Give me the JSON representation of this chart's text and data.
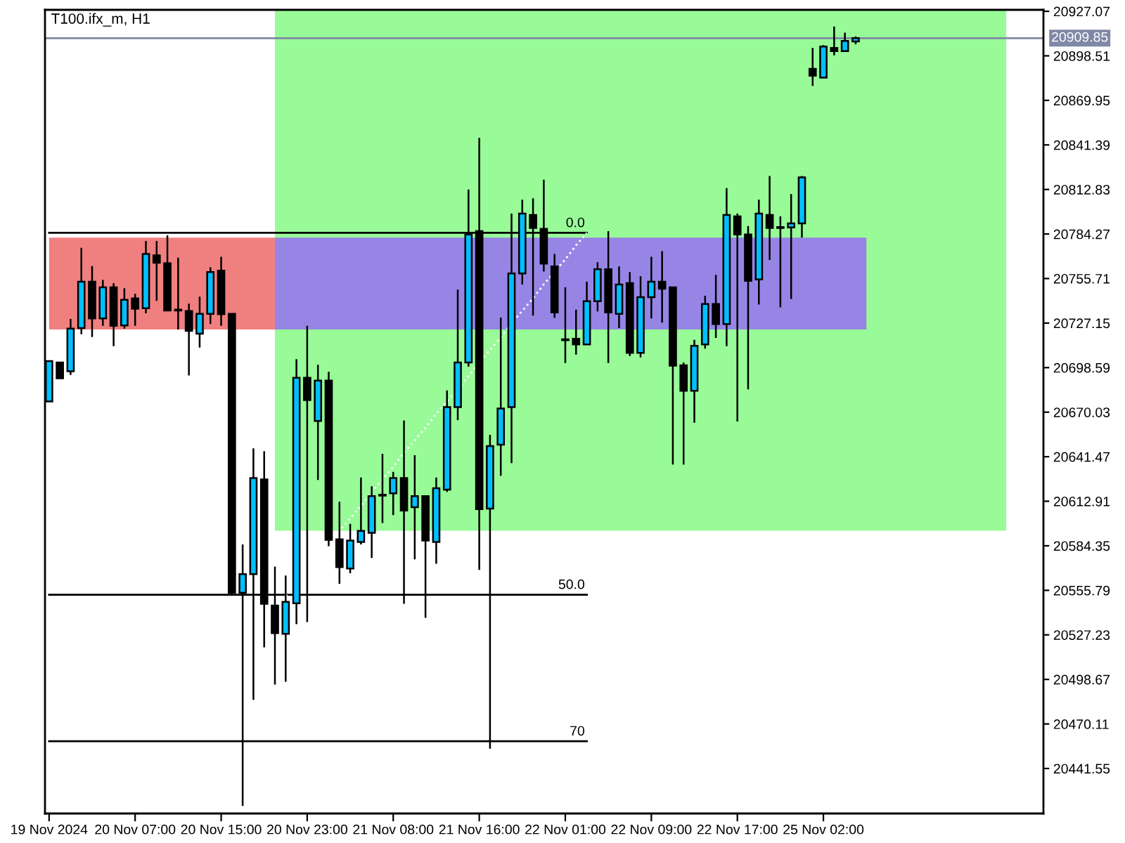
{
  "chart_data": {
    "type": "candlestick",
    "title": "T100.ifx_m, H1",
    "categories": [
      "19 Nov 2024",
      null,
      null,
      null,
      null,
      null,
      null,
      null,
      "20 Nov 07:00",
      null,
      null,
      null,
      null,
      null,
      null,
      null,
      "20 Nov 15:00",
      null,
      null,
      null,
      null,
      null,
      null,
      null,
      "20 Nov 23:00",
      null,
      null,
      null,
      null,
      null,
      null,
      null,
      "21 Nov 08:00",
      null,
      null,
      null,
      null,
      null,
      null,
      null,
      "21 Nov 16:00",
      null,
      null,
      null,
      null,
      null,
      null,
      null,
      "22 Nov 01:00",
      null,
      null,
      null,
      null,
      null,
      null,
      null,
      "22 Nov 09:00",
      null,
      null,
      null,
      null,
      null,
      null,
      null,
      "22 Nov 17:00",
      null,
      null,
      null,
      null,
      null,
      null,
      null,
      "25 Nov 02:00",
      null,
      null,
      null,
      null,
      null,
      null,
      null,
      null,
      null,
      null,
      null,
      null,
      null,
      null,
      null,
      null,
      null,
      null,
      null,
      null
    ],
    "ylim": [
      20412.7,
      20928.0
    ],
    "yticks": [
      20927.07,
      20898.51,
      20869.95,
      20841.39,
      20812.83,
      20784.27,
      20755.71,
      20727.15,
      20698.59,
      20670.03,
      20641.47,
      20612.91,
      20584.35,
      20555.79,
      20527.23,
      20498.67,
      20470.11,
      20441.55
    ],
    "series": [
      {
        "type": "line",
        "color": "#98fb98",
        "values": [
          null,
          null,
          null,
          null,
          null,
          null,
          null,
          null,
          null,
          null,
          null,
          null,
          null,
          null,
          null,
          null,
          null,
          null,
          null,
          null,
          null,
          null,
          null,
          null,
          null,
          null,
          null,
          null,
          null,
          null,
          null,
          null,
          null,
          null,
          null,
          null,
          null,
          null,
          null,
          null,
          null,
          null,
          null,
          null,
          null,
          null,
          null,
          null,
          null,
          null,
          null,
          null,
          null,
          null,
          null,
          null,
          null,
          null,
          null,
          null,
          null,
          null,
          null,
          null,
          null,
          null,
          null,
          null,
          null,
          null,
          null,
          null,
          null,
          null,
          null,
          null,
          null,
          null,
          null,
          null,
          null,
          null,
          null,
          null,
          null,
          null,
          null,
          null,
          null,
          null,
          null,
          null,
          null
        ],
        "upper": [
          null,
          null,
          null,
          null,
          null,
          null,
          null,
          null,
          null,
          null,
          null,
          null,
          null,
          null,
          null,
          null,
          null,
          null,
          null,
          null,
          null,
          20928,
          null,
          null,
          null,
          null,
          null,
          null,
          null,
          null,
          null,
          null,
          null,
          null,
          null,
          null,
          null,
          null,
          null,
          null,
          null,
          null,
          null,
          null,
          null,
          null,
          null,
          null,
          null,
          null,
          null,
          null,
          null,
          null,
          null,
          null,
          null,
          null,
          null,
          null,
          null,
          null,
          null,
          null,
          null,
          null,
          null,
          null,
          null,
          null,
          null,
          null,
          null,
          null,
          null,
          null,
          null,
          null,
          null,
          null,
          null,
          null,
          null,
          null,
          null,
          null,
          null,
          null,
          null,
          20928,
          null,
          null,
          null
        ],
        "lower": [
          null,
          null,
          null,
          null,
          null,
          null,
          null,
          null,
          null,
          null,
          null,
          null,
          null,
          null,
          null,
          null,
          null,
          null,
          null,
          null,
          null,
          20594,
          null,
          null,
          null,
          null,
          null,
          null,
          null,
          null,
          null,
          null,
          null,
          null,
          null,
          null,
          null,
          null,
          null,
          null,
          null,
          null,
          null,
          null,
          null,
          null,
          null,
          null,
          null,
          null,
          null,
          null,
          null,
          null,
          null,
          null,
          null,
          null,
          null,
          null,
          null,
          null,
          null,
          null,
          null,
          null,
          null,
          null,
          null,
          null,
          null,
          null,
          null,
          null,
          null,
          null,
          null,
          null,
          null,
          null,
          null,
          null,
          null,
          null,
          null,
          null,
          null,
          null,
          null,
          20594,
          null,
          null,
          null
        ]
      },
      {
        "type": "line",
        "color": "#f08080",
        "values": [
          null,
          null,
          null,
          null,
          null,
          null,
          null,
          null,
          null,
          null,
          null,
          null,
          null,
          null,
          null,
          null,
          null,
          null,
          null,
          null,
          null,
          null,
          null,
          null,
          null,
          null,
          null,
          null,
          null,
          null,
          null,
          null,
          null,
          null,
          null,
          null,
          null,
          null,
          null,
          null,
          null,
          null,
          null,
          null,
          null,
          null,
          null,
          null,
          null,
          null,
          null,
          null,
          null,
          null,
          null,
          null,
          null,
          null,
          null,
          null,
          null,
          null,
          null,
          null,
          null,
          null,
          null,
          null,
          null,
          null,
          null,
          null,
          null,
          null,
          null,
          null,
          null,
          null,
          null,
          null,
          null,
          null,
          null,
          null,
          null,
          null,
          null,
          null,
          null,
          null,
          null,
          null,
          null
        ],
        "upper": [
          20782,
          null,
          null,
          null,
          null,
          null,
          null,
          null,
          null,
          null,
          null,
          null,
          null,
          null,
          null,
          null,
          null,
          null,
          null,
          null,
          null,
          20782,
          null,
          null,
          null,
          null,
          null,
          null,
          null,
          null,
          null,
          null,
          null,
          null,
          null,
          null,
          null,
          null,
          null,
          null,
          null,
          null,
          null,
          null,
          null,
          null,
          null,
          null,
          null,
          null,
          null,
          null,
          null,
          null,
          null,
          null,
          null,
          null,
          null,
          null,
          null,
          null,
          null,
          null,
          null,
          null,
          null,
          null,
          null,
          null,
          null,
          null,
          null,
          null,
          null,
          null,
          null,
          null,
          null,
          null,
          null,
          null,
          null,
          null,
          null,
          null,
          null,
          null,
          null,
          null,
          null,
          null,
          null
        ],
        "lower": [
          20723,
          null,
          null,
          null,
          null,
          null,
          null,
          null,
          null,
          null,
          null,
          null,
          null,
          null,
          null,
          null,
          null,
          null,
          null,
          null,
          null,
          20723,
          null,
          null,
          null,
          null,
          null,
          null,
          null,
          null,
          null,
          null,
          null,
          null,
          null,
          null,
          null,
          null,
          null,
          null,
          null,
          null,
          null,
          null,
          null,
          null,
          null,
          null,
          null,
          null,
          null,
          null,
          null,
          null,
          null,
          null,
          null,
          null,
          null,
          null,
          null,
          null,
          null,
          null,
          null,
          null,
          null,
          null,
          null,
          null,
          null,
          null,
          null,
          null,
          null,
          null,
          null,
          null,
          null,
          null,
          null,
          null,
          null,
          null,
          null,
          null,
          null,
          null,
          null,
          null,
          null,
          null,
          null
        ]
      },
      {
        "type": "line",
        "color": "#9785e6",
        "values": [
          null,
          null,
          null,
          null,
          null,
          null,
          null,
          null,
          null,
          null,
          null,
          null,
          null,
          null,
          null,
          null,
          null,
          null,
          null,
          null,
          null,
          null,
          null,
          null,
          null,
          null,
          null,
          null,
          null,
          null,
          null,
          null,
          null,
          null,
          null,
          null,
          null,
          null,
          null,
          null,
          null,
          null,
          null,
          null,
          null,
          null,
          null,
          null,
          null,
          null,
          null,
          null,
          null,
          null,
          null,
          null,
          null,
          null,
          null,
          null,
          null,
          null,
          null,
          null,
          null,
          null,
          null,
          null,
          null,
          null,
          null,
          null,
          null,
          null,
          null,
          null,
          null,
          null,
          null,
          null,
          null,
          null,
          null,
          null,
          null,
          null,
          null,
          null,
          null,
          null,
          null,
          null,
          null
        ],
        "upper": [
          null,
          null,
          null,
          null,
          null,
          null,
          null,
          null,
          null,
          null,
          null,
          null,
          null,
          null,
          null,
          null,
          null,
          null,
          null,
          null,
          null,
          20782,
          null,
          null,
          null,
          null,
          null,
          null,
          null,
          null,
          null,
          null,
          null,
          null,
          null,
          null,
          null,
          null,
          null,
          null,
          null,
          null,
          null,
          null,
          null,
          null,
          null,
          null,
          null,
          null,
          null,
          null,
          null,
          null,
          null,
          null,
          null,
          null,
          null,
          null,
          null,
          null,
          null,
          null,
          null,
          null,
          null,
          null,
          null,
          null,
          null,
          null,
          null,
          null,
          null,
          null,
          20782,
          null,
          null,
          null,
          null,
          null,
          null,
          null,
          null,
          null,
          null,
          null,
          null,
          null,
          null,
          null,
          null
        ],
        "lower": [
          null,
          null,
          null,
          null,
          null,
          null,
          null,
          null,
          null,
          null,
          null,
          null,
          null,
          null,
          null,
          null,
          null,
          null,
          null,
          null,
          null,
          20723,
          null,
          null,
          null,
          null,
          null,
          null,
          null,
          null,
          null,
          null,
          null,
          null,
          null,
          null,
          null,
          null,
          null,
          null,
          null,
          null,
          null,
          null,
          null,
          null,
          null,
          null,
          null,
          null,
          null,
          null,
          null,
          null,
          null,
          null,
          null,
          null,
          null,
          null,
          null,
          null,
          null,
          null,
          null,
          null,
          null,
          null,
          null,
          null,
          null,
          null,
          null,
          null,
          null,
          null,
          20723,
          null,
          null,
          null,
          null,
          null,
          null,
          null,
          null,
          null,
          null,
          null,
          null,
          null,
          null,
          null,
          null
        ]
      },
      {
        "type": "line",
        "name": "0.0",
        "color": "#000000",
        "line_style": "solid",
        "values": [
          20785,
          20785,
          20785,
          20785,
          20785,
          20785,
          20785,
          20785,
          20785,
          20785,
          20785,
          20785,
          20785,
          20785,
          20785,
          20785,
          20785,
          20785,
          20785,
          20785,
          20785,
          20785,
          20785,
          20785,
          20785,
          20785,
          20785,
          20785,
          20785,
          20785,
          20785,
          20785,
          20785,
          20785,
          20785,
          20785,
          20785,
          20785,
          20785,
          20785,
          20785,
          20785,
          20785,
          20785,
          20785,
          20785,
          20785,
          20785,
          20785,
          20785,
          20785,
          null,
          null,
          null,
          null,
          null,
          null,
          null,
          null,
          null,
          null,
          null,
          null,
          null,
          null,
          null,
          null,
          null,
          null,
          null,
          null,
          null,
          null,
          null,
          null,
          null,
          null,
          null,
          null,
          null,
          null,
          null,
          null,
          null,
          null,
          null,
          null,
          null,
          null,
          null,
          null,
          null,
          null
        ]
      },
      {
        "type": "line",
        "name": "50.0",
        "color": "#000000",
        "line_style": "solid",
        "values": [
          20553,
          20553,
          20553,
          20553,
          20553,
          20553,
          20553,
          20553,
          20553,
          20553,
          20553,
          20553,
          20553,
          20553,
          20553,
          20553,
          20553,
          20553,
          20553,
          20553,
          20553,
          20553,
          20553,
          20553,
          20553,
          20553,
          20553,
          20553,
          20553,
          20553,
          20553,
          20553,
          20553,
          20553,
          20553,
          20553,
          20553,
          20553,
          20553,
          20553,
          20553,
          20553,
          20553,
          20553,
          20553,
          20553,
          20553,
          20553,
          20553,
          20553,
          20553,
          null,
          null,
          null,
          null,
          null,
          null,
          null,
          null,
          null,
          null,
          null,
          null,
          null,
          null,
          null,
          null,
          null,
          null,
          null,
          null,
          null,
          null,
          null,
          null,
          null,
          null,
          null,
          null,
          null,
          null,
          null,
          null,
          null,
          null,
          null,
          null,
          null,
          null,
          null,
          null,
          null,
          null
        ]
      },
      {
        "type": "line",
        "name": "70",
        "color": "#000000",
        "line_style": "solid",
        "values": [
          20459,
          20459,
          20459,
          20459,
          20459,
          20459,
          20459,
          20459,
          20459,
          20459,
          20459,
          20459,
          20459,
          20459,
          20459,
          20459,
          20459,
          20459,
          20459,
          20459,
          20459,
          20459,
          20459,
          20459,
          20459,
          20459,
          20459,
          20459,
          20459,
          20459,
          20459,
          20459,
          20459,
          20459,
          20459,
          20459,
          20459,
          20459,
          20459,
          20459,
          20459,
          20459,
          20459,
          20459,
          20459,
          20459,
          20459,
          20459,
          20459,
          20459,
          20459,
          null,
          null,
          null,
          null,
          null,
          null,
          null,
          null,
          null,
          null,
          null,
          null,
          null,
          null,
          null,
          null,
          null,
          null,
          null,
          null,
          null,
          null,
          null,
          null,
          null,
          null,
          null,
          null,
          null,
          null,
          null,
          null,
          null,
          null,
          null,
          null,
          null,
          null,
          null,
          null,
          null,
          null
        ]
      },
      {
        "type": "line",
        "color": "#ffffff",
        "line_style": "dotted",
        "values": [
          null,
          null,
          null,
          null,
          null,
          null,
          null,
          null,
          null,
          null,
          null,
          null,
          null,
          null,
          null,
          null,
          null,
          null,
          20519,
          20527,
          20536,
          20544,
          20552,
          20560,
          20569,
          20577,
          20585,
          20594,
          20602,
          20610,
          20619,
          20627,
          20635,
          20644,
          20652,
          20660,
          20669,
          20677,
          20685,
          20693,
          20702,
          20710,
          20718,
          20727,
          20735,
          20743,
          20752,
          20760,
          20768,
          20777,
          20785,
          null,
          null,
          null,
          null,
          null,
          null,
          null,
          null,
          null,
          null,
          null,
          null,
          null,
          null,
          null,
          null,
          null,
          null,
          null,
          null,
          null,
          null,
          null,
          null,
          null,
          null,
          null,
          null,
          null,
          null,
          null,
          null,
          null,
          null,
          null,
          null,
          null,
          null,
          null,
          null,
          null,
          null
        ]
      },
      {
        "ohlc": [
          [
            20676.9,
            20702.8,
            20676.9,
            20702.8
          ],
          [
            20701.9,
            20701.9,
            20691.7,
            20691.7
          ],
          [
            20696.2,
            20729.8,
            20693.9,
            20723.6
          ],
          [
            20723.9,
            20775.4,
            20720.0,
            20753.7
          ],
          [
            20753.7,
            20763.7,
            20718.2,
            20730.1
          ],
          [
            20730.1,
            20754.8,
            20725.4,
            20750.1
          ],
          [
            20750.1,
            20752.8,
            20712.3,
            20725.4
          ],
          [
            20725.6,
            20749.5,
            20723.6,
            20742.1
          ],
          [
            20743.0,
            20745.9,
            20725.4,
            20736.3
          ],
          [
            20736.7,
            20779.8,
            20733.4,
            20771.5
          ],
          [
            20770.6,
            20779.8,
            20741.4,
            20765.8
          ],
          [
            20765.5,
            20783.4,
            20734.6,
            20735.2
          ],
          [
            20735.8,
            20769.1,
            20723.0,
            20735.2
          ],
          [
            20734.9,
            20739.6,
            20693.5,
            20722.1
          ],
          [
            20720.3,
            20744.1,
            20711.4,
            20733.1
          ],
          [
            20733.1,
            20762.9,
            20726.5,
            20759.9
          ],
          [
            20760.8,
            20769.7,
            20725.4,
            20732.8
          ],
          [
            20733.1,
            20733.1,
            20553.4,
            20554.3
          ],
          [
            20554.3,
            20585.2,
            20417.5,
            20566.2
          ],
          [
            20566.2,
            20646.8,
            20485.6,
            20627.8
          ],
          [
            20626.9,
            20645.0,
            20519.2,
            20547.1
          ],
          [
            20546.0,
            20571.0,
            20495.4,
            20528.4
          ],
          [
            20527.9,
            20565.3,
            20497.2,
            20548.4
          ],
          [
            20547.5,
            20704.0,
            20534.1,
            20692.1
          ],
          [
            20692.1,
            20725.4,
            20535.5,
            20677.8
          ],
          [
            20664.4,
            20700.4,
            20626.6,
            20690.3
          ],
          [
            20690.3,
            20695.9,
            20584.1,
            20588.2
          ],
          [
            20588.5,
            20612.6,
            20560.0,
            20570.7
          ],
          [
            20569.8,
            20598.4,
            20566.8,
            20587.7
          ],
          [
            20586.8,
            20628.1,
            20585.2,
            20593.9
          ],
          [
            20592.7,
            20622.5,
            20576.6,
            20616.2
          ],
          [
            20617.1,
            20643.3,
            20598.9,
            20616.5
          ],
          [
            20618.0,
            20631.7,
            20604.0,
            20627.8
          ],
          [
            20627.8,
            20664.7,
            20547.1,
            20606.9
          ],
          [
            20609.1,
            20642.4,
            20575.7,
            20616.2
          ],
          [
            20616.2,
            20616.2,
            20538.2,
            20587.7
          ],
          [
            20586.8,
            20628.1,
            20572.8,
            20621.2
          ],
          [
            20620.3,
            20684.0,
            20618.9,
            20673.3
          ],
          [
            20673.3,
            20748.6,
            20664.9,
            20701.9
          ],
          [
            20701.9,
            20812.8,
            20699.2,
            20784.0
          ],
          [
            20786.1,
            20845.9,
            20568.9,
            20607.8
          ],
          [
            20608.2,
            20655.5,
            20454.3,
            20648.3
          ],
          [
            20649.2,
            20730.7,
            20629.2,
            20672.4
          ],
          [
            20673.3,
            20797.4,
            20637.3,
            20759.0
          ],
          [
            20759.0,
            20806.3,
            20751.9,
            20797.4
          ],
          [
            20796.5,
            20807.2,
            20731.9,
            20788.1
          ],
          [
            20787.6,
            20819.1,
            20760.2,
            20765.3
          ],
          [
            20763.5,
            20771.5,
            20730.5,
            20734.0
          ],
          [
            20716.7,
            20750.1,
            20701.5,
            20716.2
          ],
          [
            20717.1,
            20735.8,
            20706.9,
            20713.5
          ],
          [
            20713.5,
            20753.7,
            20713.5,
            20741.2
          ],
          [
            20741.2,
            20766.2,
            20734.6,
            20761.7
          ],
          [
            20761.7,
            20786.1,
            20701.5,
            20734.0
          ],
          [
            20733.1,
            20763.5,
            20723.9,
            20751.9
          ],
          [
            20752.8,
            20759.9,
            20706.0,
            20708.1
          ],
          [
            20708.1,
            20757.2,
            20705.1,
            20743.8
          ],
          [
            20743.8,
            20769.7,
            20730.1,
            20753.7
          ],
          [
            20753.7,
            20773.3,
            20727.4,
            20749.2
          ],
          [
            20750.1,
            20750.1,
            20636.4,
            20699.8
          ],
          [
            20700.1,
            20701.9,
            20636.4,
            20683.7
          ],
          [
            20683.7,
            20716.4,
            20663.2,
            20712.6
          ],
          [
            20713.5,
            20744.7,
            20710.8,
            20739.4
          ],
          [
            20739.4,
            20758.1,
            20717.6,
            20726.5
          ],
          [
            20726.5,
            20813.7,
            20712.3,
            20796.5
          ],
          [
            20795.6,
            20797.4,
            20664.1,
            20784.0
          ],
          [
            20784.0,
            20789.4,
            20684.6,
            20754.2
          ],
          [
            20755.1,
            20806.3,
            20739.0,
            20797.4
          ],
          [
            20796.5,
            20821.5,
            20767.6,
            20788.1
          ],
          [
            20788.7,
            20795.6,
            20737.2,
            20788.1
          ],
          [
            20788.5,
            20809.9,
            20742.6,
            20791.1
          ],
          [
            20791.1,
            20821.5,
            20781.9,
            20820.6
          ],
          [
            20890.2,
            20903.6,
            20879.2,
            20885.8
          ],
          [
            20884.5,
            20905.4,
            20884.5,
            20904.5
          ],
          [
            20903.6,
            20917.3,
            20898.8,
            20901.5
          ],
          [
            20901.5,
            20913.4,
            20901.5,
            20908.1
          ],
          [
            20907.7,
            20911.0,
            20905.9,
            20909.85
          ],
          null,
          null,
          null,
          null,
          null,
          null,
          null,
          null,
          null,
          null,
          null,
          null,
          null,
          null,
          null,
          null,
          null
        ],
        "colors": [
          "#00bfff",
          "#000000",
          "#00bfff",
          "#00bfff",
          "#000000",
          "#00bfff",
          "#000000",
          "#00bfff",
          "#000000",
          "#00bfff",
          "#000000",
          "#000000",
          "#000000",
          "#000000",
          "#00bfff",
          "#00bfff",
          "#000000",
          "#000000",
          "#00bfff",
          "#00bfff",
          "#000000",
          "#000000",
          "#00bfff",
          "#00bfff",
          "#000000",
          "#00bfff",
          "#000000",
          "#000000",
          "#00bfff",
          "#00bfff",
          "#00bfff",
          "#000000",
          "#00bfff",
          "#000000",
          "#00bfff",
          "#000000",
          "#00bfff",
          "#00bfff",
          "#00bfff",
          "#00bfff",
          "#000000",
          "#00bfff",
          "#00bfff",
          "#00bfff",
          "#00bfff",
          "#000000",
          "#000000",
          "#000000",
          "#000000",
          "#000000",
          "#00bfff",
          "#00bfff",
          "#000000",
          "#00bfff",
          "#000000",
          "#00bfff",
          "#00bfff",
          "#000000",
          "#000000",
          "#000000",
          "#00bfff",
          "#00bfff",
          "#000000",
          "#00bfff",
          "#000000",
          "#000000",
          "#00bfff",
          "#000000",
          "#000000",
          "#00bfff",
          "#00bfff",
          "#000000",
          "#00bfff",
          "#000000",
          "#00bfff",
          "#00bfff",
          null,
          null,
          null,
          null,
          null,
          null,
          null,
          null,
          null,
          null,
          null,
          null,
          null,
          null,
          null,
          null,
          null
        ]
      }
    ],
    "ref_lines": [
      {
        "axis": "y",
        "value": 20909.85,
        "label": "20909.85",
        "color": "#7f88a6"
      }
    ]
  }
}
